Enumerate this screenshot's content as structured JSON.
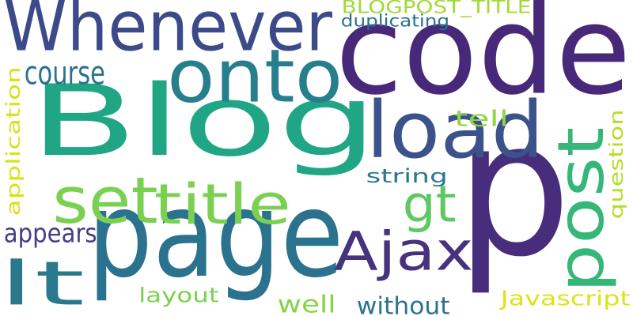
{
  "words": [
    {
      "text": "Whenever",
      "color": "#3d4a8a"
    },
    {
      "text": "code",
      "color": "#482878"
    },
    {
      "text": "Blog",
      "color": "#21a685"
    },
    {
      "text": "p",
      "color": "#472d7b"
    },
    {
      "text": "page",
      "color": "#2b728e"
    },
    {
      "text": "onto",
      "color": "#277f8e"
    },
    {
      "text": "load",
      "color": "#3b528b"
    },
    {
      "text": "post",
      "color": "#35b779"
    },
    {
      "text": "Ajax",
      "color": "#46327e"
    },
    {
      "text": "title",
      "color": "#7ad151"
    },
    {
      "text": "set",
      "color": "#7ad151"
    },
    {
      "text": "lt",
      "color": "#2a788e"
    },
    {
      "text": "gt",
      "color": "#5ec962"
    },
    {
      "text": "BLOGPOST_TITLE",
      "color": "#a0da39"
    },
    {
      "text": "duplicating",
      "color": "#2c728e"
    },
    {
      "text": "course",
      "color": "#2c728e"
    },
    {
      "text": "tell",
      "color": "#8fd744"
    },
    {
      "text": "string",
      "color": "#2a788e"
    },
    {
      "text": "application",
      "color": "#d8e219"
    },
    {
      "text": "question",
      "color": "#b5de2b"
    },
    {
      "text": "appears",
      "color": "#433e85"
    },
    {
      "text": "layout",
      "color": "#7ad151"
    },
    {
      "text": "well",
      "color": "#86d549"
    },
    {
      "text": "without",
      "color": "#2c728e"
    },
    {
      "text": "Javascript",
      "color": "#dde318"
    }
  ]
}
